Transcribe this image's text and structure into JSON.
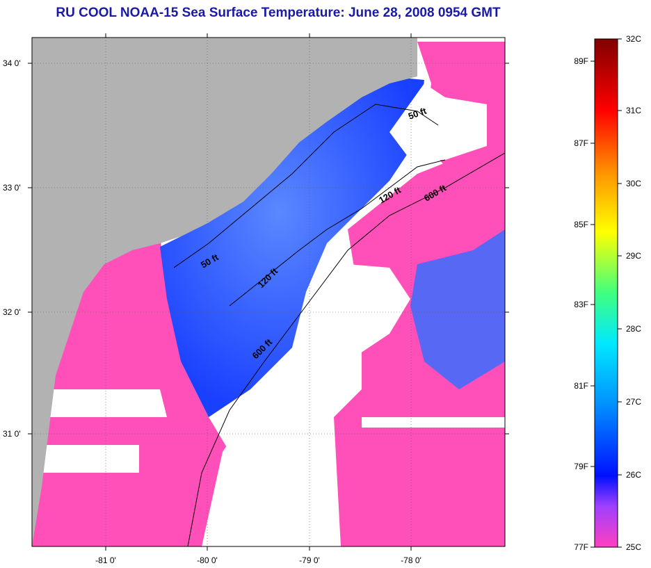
{
  "title": "RU COOL  NOAA-15  Sea Surface Temperature:  June 28, 2008 0954 GMT",
  "map": {
    "lat_labels": [
      "34 0'",
      "33 0'",
      "32 0'",
      "31 0'"
    ],
    "lon_labels": [
      "-81 0'",
      "-80 0'",
      "-79 0'",
      "-78 0'"
    ],
    "contour_labels": [
      "50 ft",
      "120 ft",
      "600 ft",
      "50 ft",
      "120 ft",
      "600 ft"
    ],
    "colors": {
      "land": "#b2b2b2",
      "warm": "#ff4fb8",
      "cool": "#1a60ff",
      "cloud": "#ffffff"
    }
  },
  "colorbar": {
    "celsius": [
      "32C",
      "31C",
      "30C",
      "29C",
      "28C",
      "27C",
      "26C",
      "25C"
    ],
    "fahrenheit": [
      "89F",
      "87F",
      "85F",
      "83F",
      "81F",
      "79F",
      "77F"
    ]
  }
}
